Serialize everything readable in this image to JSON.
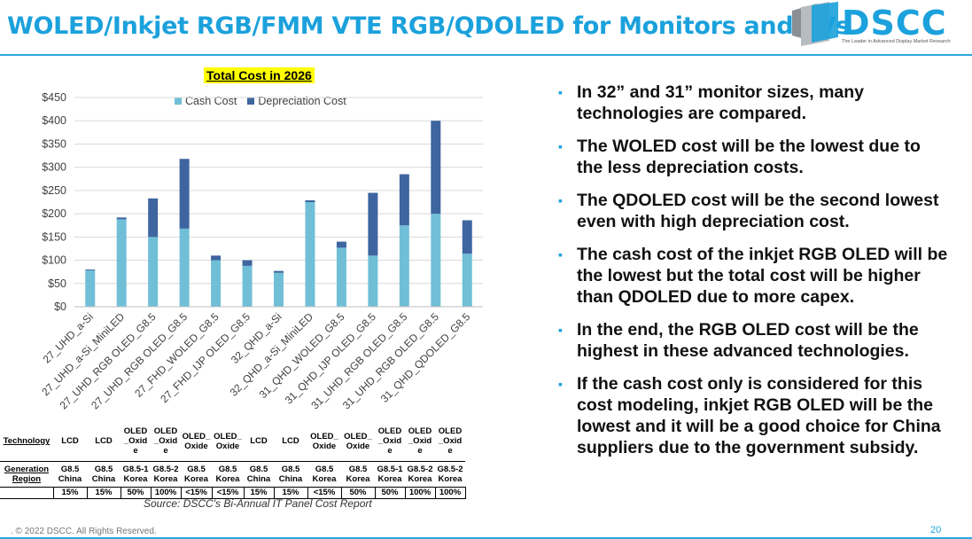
{
  "header": {
    "title": "WOLED/Inkjet RGB/FMM VTE RGB/QDOLED for Monitors and TVs",
    "logo_text": "DSCC",
    "logo_tagline": "The Leader in Advanced Display Market Research"
  },
  "colors": {
    "cash": "#70BFD7",
    "depreciation": "#3E65A0",
    "brand": "#1BA1DC",
    "highlight": "#FFFF00"
  },
  "chart_data": {
    "type": "bar",
    "stacked": true,
    "title": "Total Cost in 2026",
    "xlabel": "",
    "ylabel": "",
    "ylim": [
      0,
      450
    ],
    "y_ticks": [
      "$0",
      "$50",
      "$100",
      "$150",
      "$200",
      "$250",
      "$300",
      "$350",
      "$400",
      "$450"
    ],
    "y_tick_values": [
      0,
      50,
      100,
      150,
      200,
      250,
      300,
      350,
      400,
      450
    ],
    "gridlines": true,
    "legend_position": "top",
    "categories": [
      "27_UHD_a-Si",
      "27_UHD_a-Si_MiniLED",
      "27_UHD_RGB OLED_G8.5",
      "27_UHD_RGB OLED_G8.5",
      "27_FHD_WOLED_G8.5",
      "27_FHD_IJP OLED_G8.5",
      "32_QHD_a-Si",
      "32_QHD_a-Si_MiniLED",
      "31_QHD_WOLED_G8.5",
      "31_QHD_IJP OLED_G8.5",
      "31_UHD_RGB OLED_G8.5",
      "31_UHD_RGB OLED_G8.5",
      "31_QHD_QDOLED_G8.5"
    ],
    "series": [
      {
        "name": "Cash Cost",
        "values": [
          78,
          188,
          150,
          168,
          100,
          88,
          73,
          225,
          127,
          110,
          175,
          200,
          114
        ]
      },
      {
        "name": "Depreciation Cost",
        "values": [
          2,
          4,
          83,
          150,
          10,
          12,
          4,
          4,
          13,
          135,
          110,
          200,
          72
        ]
      }
    ]
  },
  "cost_table": {
    "technology_label": "Technology",
    "generation_label": "Generation",
    "region_label": "Region",
    "technology": [
      "LCD",
      "LCD",
      "OLED _Oxid e",
      "OLED _Oxid e",
      "OLED_ Oxide",
      "OLED_ Oxide",
      "LCD",
      "LCD",
      "OLED_ Oxide",
      "OLED_ Oxide",
      "OLED _Oxid e",
      "OLED _Oxid e",
      "OLED _Oxid e"
    ],
    "generation": [
      "G8.5",
      "G8.5",
      "G8.5-1",
      "G8.5-2",
      "G8.5",
      "G8.5",
      "G8.5",
      "G8.5",
      "G8.5",
      "G8.5",
      "G8.5-1",
      "G8.5-2",
      "G8.5-2"
    ],
    "region": [
      "China",
      "China",
      "Korea",
      "Korea",
      "Korea",
      "Korea",
      "China",
      "China",
      "Korea",
      "Korea",
      "Korea",
      "Korea",
      "Korea"
    ],
    "share": [
      "15%",
      "15%",
      "50%",
      "100%",
      "<15%",
      "<15%",
      "15%",
      "15%",
      "<15%",
      "50%",
      "50%",
      "100%",
      "100%"
    ]
  },
  "source": "Source: DSCC's Bi-Annual IT Panel Cost Report",
  "bullets": [
    "In 32” and 31” monitor sizes, many technologies are compared.",
    "The WOLED cost will be the lowest due to the less depreciation costs.",
    "The QDOLED cost will be the second lowest even with high depreciation cost.",
    "The cash cost of the inkjet RGB OLED will be the lowest but the total cost will be higher than QDOLED due to more capex.",
    "In the end, the RGB OLED cost will be the highest in these advanced technologies.",
    "If the cash cost only is considered for this cost modeling, inkjet RGB OLED will be the lowest and it will be a good choice for China suppliers due to the government subsidy."
  ],
  "bullet_glyph": "▪",
  "footer": {
    "copyright": ". © 2022 DSCC. All Rights Reserved.",
    "page_number": "20"
  }
}
